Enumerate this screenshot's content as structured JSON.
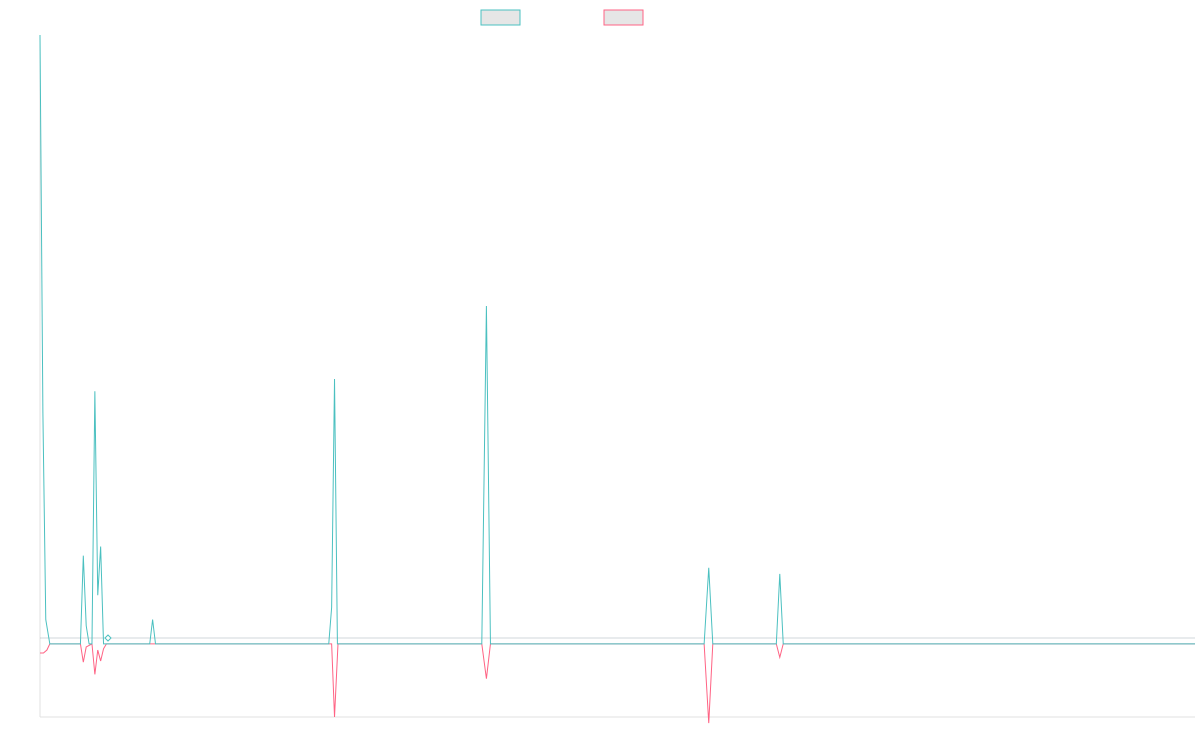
{
  "chart_data": {
    "type": "line",
    "title": "",
    "xlabel": "",
    "ylabel": "",
    "legend": {
      "position": "top-center",
      "entries": [
        {
          "label": "",
          "color": "#4bc0c0"
        },
        {
          "label": "",
          "color": "#ff6384"
        }
      ]
    },
    "axes": {
      "x_axis_line": true,
      "y_axis_line": true,
      "grid": false,
      "ticks_visible": false
    },
    "xlim": [
      0,
      200
    ],
    "ylim": [
      -12,
      100
    ],
    "series": [
      {
        "color": "#4bc0c0",
        "fill": "none",
        "points": [
          [
            0,
            100
          ],
          [
            0.5,
            38
          ],
          [
            1,
            4
          ],
          [
            1.7,
            0
          ],
          [
            7,
            0
          ],
          [
            7.5,
            14.5
          ],
          [
            8,
            3
          ],
          [
            8.5,
            0
          ],
          [
            9,
            0
          ],
          [
            9.5,
            41.5
          ],
          [
            10,
            8
          ],
          [
            10.5,
            16
          ],
          [
            11,
            0
          ],
          [
            19,
            0
          ],
          [
            19.5,
            4
          ],
          [
            20,
            0
          ],
          [
            50,
            0
          ],
          [
            50.5,
            6
          ],
          [
            51,
            43.5
          ],
          [
            51.5,
            0
          ],
          [
            76.5,
            0
          ],
          [
            77.3,
            55.5
          ],
          [
            78,
            0
          ],
          [
            115,
            0
          ],
          [
            115.8,
            12.5
          ],
          [
            116.5,
            0
          ],
          [
            127.5,
            0
          ],
          [
            128.1,
            11.5
          ],
          [
            128.7,
            0
          ],
          [
            200,
            0
          ]
        ]
      },
      {
        "color": "#ff6384",
        "fill": "none",
        "points": [
          [
            0,
            -1.5
          ],
          [
            0.6,
            -1.5
          ],
          [
            1.2,
            -1
          ],
          [
            1.7,
            0
          ],
          [
            7,
            0
          ],
          [
            7.5,
            -3
          ],
          [
            8,
            -0.5
          ],
          [
            9,
            0
          ],
          [
            9.5,
            -5
          ],
          [
            10,
            -1
          ],
          [
            10.5,
            -2.8
          ],
          [
            11,
            -0.8
          ],
          [
            11.5,
            0
          ],
          [
            50.5,
            0
          ],
          [
            51,
            -12
          ],
          [
            51.6,
            0
          ],
          [
            76.5,
            0
          ],
          [
            77.3,
            -5.7
          ],
          [
            78,
            0
          ],
          [
            115,
            0
          ],
          [
            115.8,
            -13
          ],
          [
            116.5,
            0
          ],
          [
            127.5,
            0
          ],
          [
            128.1,
            -2.2
          ],
          [
            128.7,
            0
          ],
          [
            200,
            0
          ]
        ]
      }
    ]
  }
}
